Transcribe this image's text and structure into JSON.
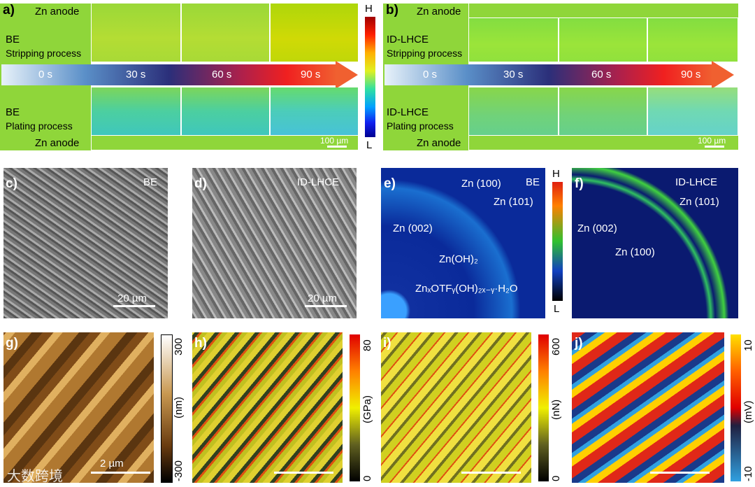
{
  "panel_a": {
    "label": "a)",
    "top_anode": "Zn anode",
    "strip_name": "BE",
    "strip_process": "Stripping process",
    "plate_name": "BE",
    "plate_process": "Plating process",
    "bottom_anode": "Zn anode",
    "times": [
      "0 s",
      "30 s",
      "60 s",
      "90 s"
    ],
    "scale": "100 µm"
  },
  "colorbar_ab": {
    "high": "H",
    "low": "L"
  },
  "panel_b": {
    "label": "b)",
    "top_anode": "Zn anode",
    "strip_name": "ID-LHCE",
    "strip_process": "Stripping process",
    "plate_name": "ID-LHCE",
    "plate_process": "Plating process",
    "bottom_anode": "Zn anode",
    "times": [
      "0 s",
      "30 s",
      "60 s",
      "90 s"
    ],
    "scale": "100 µm"
  },
  "panel_c": {
    "label": "c)",
    "tag": "BE",
    "scale": "20 µm"
  },
  "panel_d": {
    "label": "d)",
    "tag": "ID-LHCE",
    "scale": "20 µm"
  },
  "panel_e": {
    "label": "e)",
    "tag": "BE",
    "annotations": [
      "Zn (100)",
      "Zn (101)",
      "Zn (002)",
      "Zn(OH)₂",
      "ZnₓOTFᵧ(OH)₂ₓ₋ᵧ·H₂O"
    ]
  },
  "colorbar_e": {
    "high": "H",
    "low": "L"
  },
  "panel_f": {
    "label": "f)",
    "tag": "ID-LHCE",
    "annotations": [
      "Zn (101)",
      "Zn (002)",
      "Zn (100)"
    ]
  },
  "panel_g": {
    "label": "g)",
    "scale": "2 µm",
    "colorbar_max": 300,
    "colorbar_min": -300,
    "unit": "(nm)"
  },
  "panel_h": {
    "label": "h)",
    "colorbar_max": 80,
    "colorbar_min": 0,
    "unit": "(GPa)"
  },
  "panel_i": {
    "label": "i)",
    "colorbar_max": 600,
    "colorbar_min": 0,
    "unit": "(nN)"
  },
  "panel_j": {
    "label": "j)",
    "colorbar_max": 10,
    "colorbar_min": -10,
    "unit": "(mV)"
  },
  "watermark": "大数跨境"
}
